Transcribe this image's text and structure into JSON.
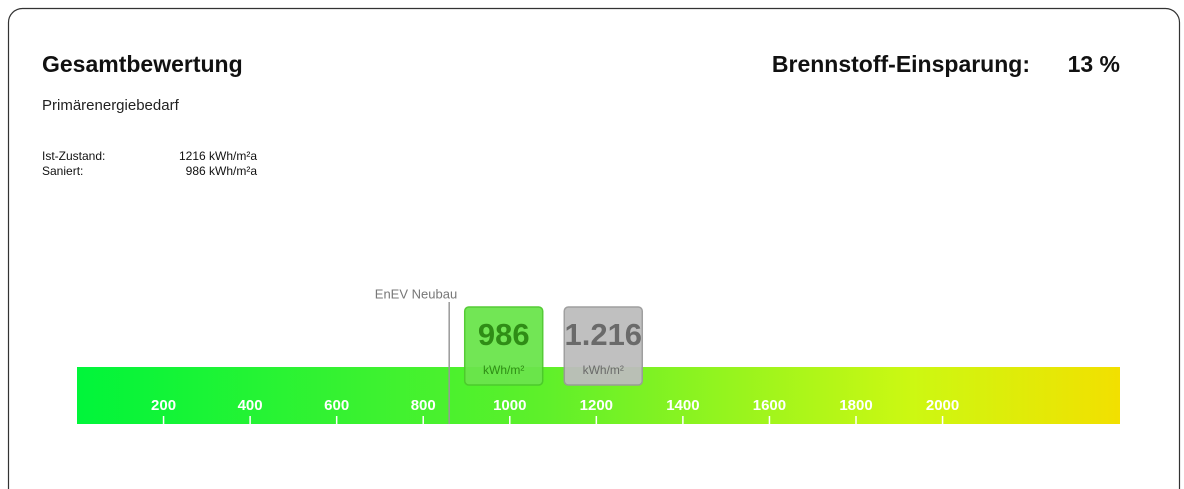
{
  "header": {
    "title": "Gesamtbewertung",
    "subtitle": "Primärenergiebedarf",
    "savings_label": "Brennstoff-Einsparung:",
    "savings_value": "13 %"
  },
  "summary": {
    "rows": [
      [
        "Ist-Zustand:",
        "1216 kWh/m²a"
      ],
      [
        "Saniert:",
        "986 kWh/m²a"
      ]
    ]
  },
  "scale": {
    "range": [
      0,
      2410
    ],
    "ticks": [
      200,
      400,
      600,
      800,
      1000,
      1200,
      1400,
      1600,
      1800,
      2000
    ],
    "reference": {
      "label": "EnEV Neubau",
      "value": 860
    },
    "markers": [
      {
        "label": "986",
        "value": 986,
        "unit": "kWh/m²",
        "color": "#6be54c",
        "border": "#4cc92c",
        "text_color": "#2f8d16"
      },
      {
        "label": "1.216",
        "value": 1216,
        "unit": "kWh/m²",
        "color": "#bdbdbd",
        "border": "#9a9a9a",
        "text_color": "#6a6a6a"
      }
    ]
  }
}
